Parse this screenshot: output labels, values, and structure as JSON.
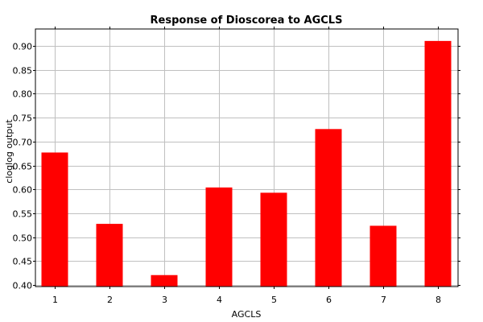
{
  "chart_data": {
    "type": "bar",
    "title": "Response of Dioscorea to AGCLS",
    "xlabel": "AGCLS",
    "ylabel": "cloglog output",
    "categories": [
      "1",
      "2",
      "3",
      "4",
      "5",
      "6",
      "7",
      "8"
    ],
    "values": [
      0.677,
      0.528,
      0.421,
      0.604,
      0.593,
      0.726,
      0.524,
      0.91
    ],
    "ylim": [
      0.397,
      0.935
    ],
    "yticks": [
      "0.40",
      "0.45",
      "0.50",
      "0.55",
      "0.60",
      "0.65",
      "0.70",
      "0.75",
      "0.80",
      "0.85",
      "0.90"
    ],
    "grid": true,
    "legend": "none",
    "colors": {
      "bar": "#ff0000",
      "grid": "#c0c0c0",
      "frame": "#000000"
    }
  }
}
